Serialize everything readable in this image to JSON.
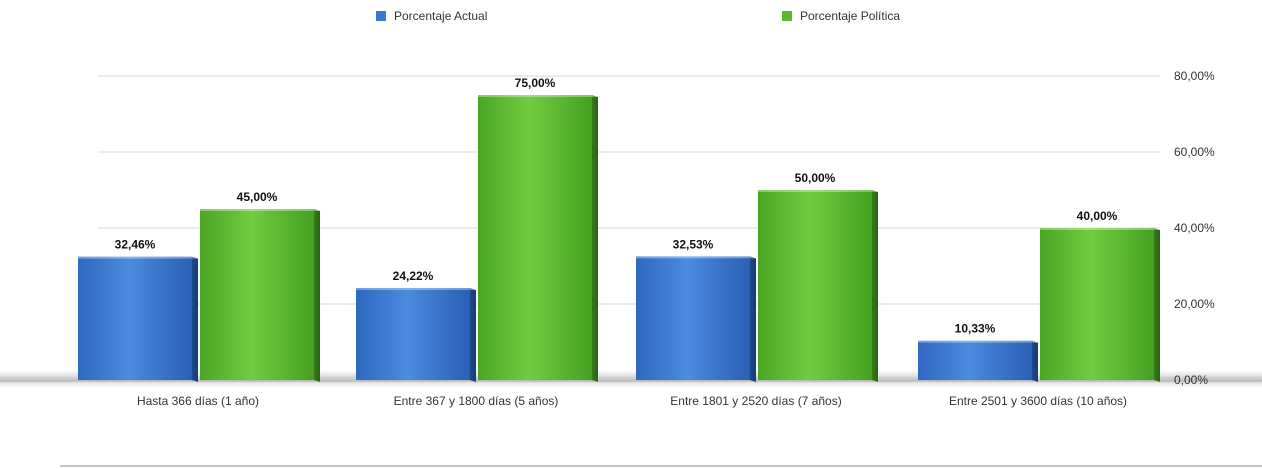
{
  "chart_data": {
    "type": "bar",
    "categories": [
      "Hasta 366 días (1 año)",
      "Entre 367 y 1800 días (5 años)",
      "Entre 1801 y 2520 días (7 años)",
      "Entre 2501 y 3600 días (10 años)"
    ],
    "series": [
      {
        "name": "Porcentaje Actual",
        "values": [
          32.46,
          24.22,
          32.53,
          10.33
        ],
        "labels": [
          "32,46%",
          "24,22%",
          "32,53%",
          "10,33%"
        ],
        "color": "#3a78d4"
      },
      {
        "name": "Porcentaje Política",
        "values": [
          45.0,
          75.0,
          50.0,
          40.0
        ],
        "labels": [
          "45,00%",
          "75,00%",
          "50,00%",
          "40,00%"
        ],
        "color": "#5cb82e"
      }
    ],
    "ylim": [
      0,
      80
    ],
    "yticks": [
      0,
      20,
      40,
      60,
      80
    ],
    "ytick_labels": [
      "0,00%",
      "20,00%",
      "40,00%",
      "60,00%",
      "80,00%"
    ],
    "y_axis_side": "right",
    "grid": true,
    "legend_position": "top"
  }
}
